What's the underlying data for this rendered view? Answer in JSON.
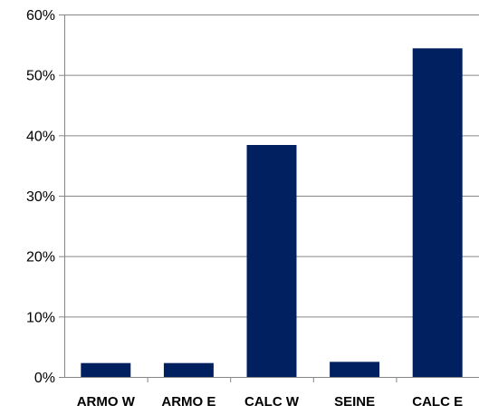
{
  "chart_data": {
    "type": "bar",
    "categories": [
      "ARMO W",
      "ARMO E",
      "CALC W",
      "SEINE",
      "CALC E"
    ],
    "values": [
      2.3,
      2.3,
      38.4,
      2.5,
      54.4
    ],
    "y_tick_labels": [
      "0%",
      "10%",
      "20%",
      "30%",
      "40%",
      "50%",
      "60%"
    ],
    "y_ticks": [
      0,
      10,
      20,
      30,
      40,
      50,
      60
    ],
    "ylim": [
      0,
      60
    ],
    "title": "",
    "xlabel": "",
    "ylabel": "",
    "grid": true,
    "legend": "none",
    "colors": {
      "bar": "#002060",
      "grid": "#868686",
      "axis": "#868686"
    }
  }
}
